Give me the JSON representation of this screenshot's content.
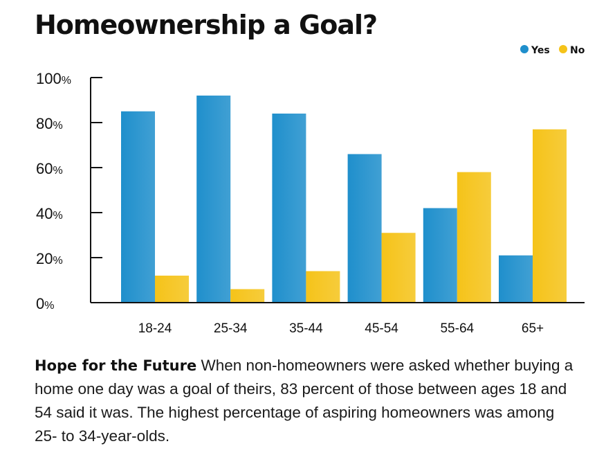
{
  "chart_data": {
    "type": "bar",
    "title": "Homeownership a Goal?",
    "categories": [
      "18-24",
      "25-34",
      "35-44",
      "45-54",
      "55-64",
      "65+"
    ],
    "series": [
      {
        "name": "Yes",
        "color": "#1f8fcc",
        "values": [
          85,
          92,
          84,
          66,
          42,
          21
        ]
      },
      {
        "name": "No",
        "color": "#f5c319",
        "values": [
          12,
          6,
          14,
          31,
          58,
          77
        ]
      }
    ],
    "yticks": [
      "0%",
      "20%",
      "40%",
      "60%",
      "80%",
      "100%"
    ],
    "ylim": [
      0,
      100
    ],
    "legend_position": "top-right",
    "grid": false
  },
  "caption": {
    "heading": "Hope for the Future",
    "text": "When non-homeowners were asked whether buying a home one day was a goal of theirs, 83 percent of those between ages 18 and 54 said it was. The highest percentage of aspiring homeowners was among 25- to 34-year-olds."
  }
}
